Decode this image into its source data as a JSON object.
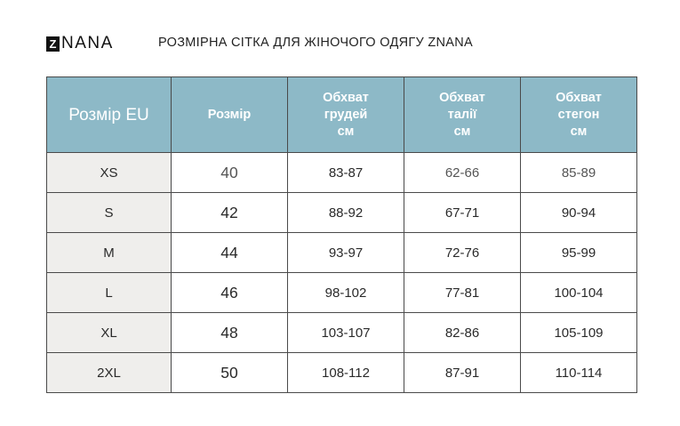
{
  "logo": {
    "box_letter": "Z",
    "rest": "NANA"
  },
  "title": "РОЗМІРНА СІТКА ДЛЯ ЖІНОЧОГО ОДЯГУ ZNANA",
  "table": {
    "headers": [
      [
        "Розмір EU"
      ],
      [
        "Розмір"
      ],
      [
        "Обхват",
        "грудей",
        "см"
      ],
      [
        "Обхват",
        "талії",
        "см"
      ],
      [
        "Обхват",
        "стегон",
        "см"
      ]
    ],
    "rows": [
      [
        "XS",
        "40",
        "83-87",
        "62-66",
        "85-89"
      ],
      [
        "S",
        "42",
        "88-92",
        "67-71",
        "90-94"
      ],
      [
        "M",
        "44",
        "93-97",
        "72-76",
        "95-99"
      ],
      [
        "L",
        "46",
        "98-102",
        "77-81",
        "100-104"
      ],
      [
        "XL",
        "48",
        "103-107",
        "82-86",
        "105-109"
      ],
      [
        "2XL",
        "50",
        "108-112",
        "87-91",
        "110-114"
      ]
    ]
  },
  "colors": {
    "header_bg": "#8db9c7",
    "eu_column_bg": "#efeeec",
    "border": "#4a4a4a"
  }
}
